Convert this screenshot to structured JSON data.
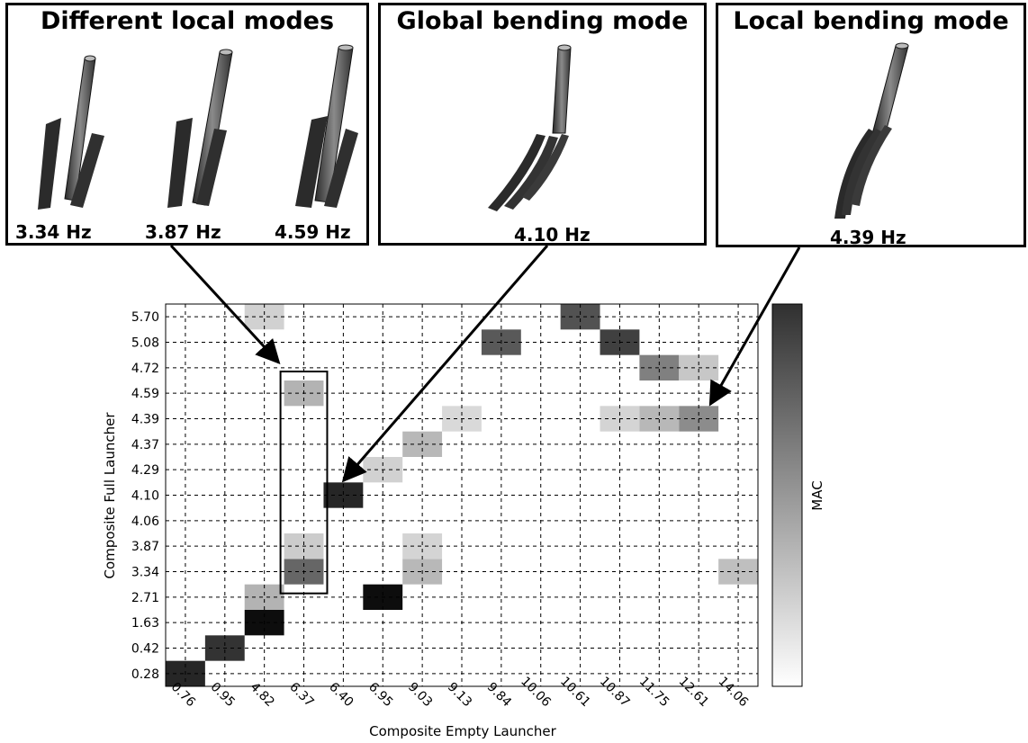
{
  "panels": [
    {
      "title": "Different local modes",
      "frequencies": [
        "3.34 Hz",
        "3.87 Hz",
        "4.59 Hz"
      ]
    },
    {
      "title": "Global bending mode",
      "frequencies": [
        "4.10 Hz"
      ]
    },
    {
      "title": "Local bending mode",
      "frequencies": [
        "4.39 Hz"
      ]
    }
  ],
  "colors": {
    "cell_dark": "#111111",
    "cell_light": "#e4e4e4",
    "grid": "#000000"
  },
  "chart_data": {
    "type": "heatmap",
    "xlabel": "Composite Empty Launcher",
    "ylabel": "Composite Full Launcher",
    "colorbar_label": "MAC",
    "grid": true,
    "x_categories": [
      "0.76",
      "0.95",
      "4.82",
      "6.37",
      "6.40",
      "6.95",
      "9.03",
      "9.13",
      "9.84",
      "10.06",
      "10.61",
      "10.87",
      "11.75",
      "12.61",
      "14.06"
    ],
    "y_categories": [
      "0.28",
      "0.42",
      "1.63",
      "2.71",
      "3.34",
      "3.87",
      "4.06",
      "4.10",
      "4.29",
      "4.37",
      "4.39",
      "4.59",
      "4.72",
      "5.08",
      "5.70"
    ],
    "cells": [
      {
        "x": "0.76",
        "y": "0.28",
        "value": 0.85
      },
      {
        "x": "0.95",
        "y": "0.42",
        "value": 0.8
      },
      {
        "x": "4.82",
        "y": "1.63",
        "value": 0.95
      },
      {
        "x": "4.82",
        "y": "2.71",
        "value": 0.3
      },
      {
        "x": "4.82",
        "y": "5.70",
        "value": 0.18
      },
      {
        "x": "6.37",
        "y": "3.34",
        "value": 0.6
      },
      {
        "x": "6.37",
        "y": "3.87",
        "value": 0.2
      },
      {
        "x": "6.37",
        "y": "4.59",
        "value": 0.3
      },
      {
        "x": "6.40",
        "y": "4.10",
        "value": 0.85
      },
      {
        "x": "6.95",
        "y": "2.71",
        "value": 0.95
      },
      {
        "x": "6.95",
        "y": "4.29",
        "value": 0.18
      },
      {
        "x": "9.03",
        "y": "3.34",
        "value": 0.28
      },
      {
        "x": "9.03",
        "y": "3.87",
        "value": 0.17
      },
      {
        "x": "9.03",
        "y": "4.37",
        "value": 0.28
      },
      {
        "x": "9.13",
        "y": "4.39",
        "value": 0.15
      },
      {
        "x": "9.84",
        "y": "5.08",
        "value": 0.65
      },
      {
        "x": "10.61",
        "y": "5.70",
        "value": 0.68
      },
      {
        "x": "10.87",
        "y": "4.39",
        "value": 0.17
      },
      {
        "x": "10.87",
        "y": "5.08",
        "value": 0.75
      },
      {
        "x": "11.75",
        "y": "4.39",
        "value": 0.28
      },
      {
        "x": "11.75",
        "y": "4.72",
        "value": 0.5
      },
      {
        "x": "12.61",
        "y": "4.39",
        "value": 0.45
      },
      {
        "x": "12.61",
        "y": "4.72",
        "value": 0.22
      },
      {
        "x": "14.06",
        "y": "3.34",
        "value": 0.25
      }
    ],
    "highlight_box": {
      "x": "6.37",
      "y_from": "3.34",
      "y_to": "4.59"
    },
    "annotations": [
      {
        "from_panel": "Different local modes",
        "to_cell": {
          "x": "6.37",
          "y": "4.59"
        }
      },
      {
        "from_panel": "Global bending mode",
        "to_cell": {
          "x": "6.40",
          "y": "4.10"
        }
      },
      {
        "from_panel": "Local bending mode",
        "to_cell": {
          "x": "12.61",
          "y": "4.39"
        }
      }
    ]
  }
}
